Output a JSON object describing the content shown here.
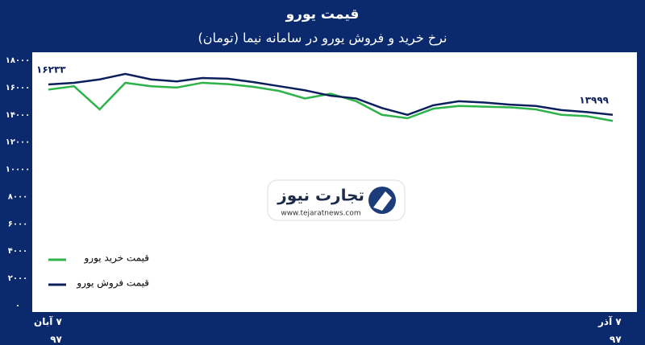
{
  "chart_data": {
    "type": "line",
    "title": "قیمت یورو",
    "subtitle": "نرخ خرید و فروش یورو در سامانه نیما (تومان)",
    "categories": [
      "۷ آبان\n۹۷",
      null,
      null,
      null,
      null,
      null,
      null,
      null,
      null,
      null,
      null,
      null,
      null,
      null,
      null,
      null,
      null,
      null,
      null,
      null,
      null,
      null,
      "۷ آذر\n۹۷"
    ],
    "series": [
      {
        "name": "قیمت خرید یورو",
        "color": "#2db34a",
        "values": [
          15850,
          16100,
          14400,
          16350,
          16100,
          16000,
          16350,
          16250,
          16050,
          15750,
          15200,
          15550,
          15000,
          14000,
          13750,
          14450,
          14650,
          14600,
          14550,
          14400,
          14000,
          13900,
          13550
        ]
      },
      {
        "name": "قیمت فروش یورو",
        "color": "#0c1f5c",
        "values": [
          16233,
          16350,
          16600,
          17000,
          16600,
          16450,
          16700,
          16650,
          16400,
          16100,
          15800,
          15400,
          15200,
          14500,
          14000,
          14700,
          15000,
          14900,
          14750,
          14650,
          14350,
          14200,
          13999
        ],
        "value_labels": [
          "۱۶۲۳۳",
          null,
          null,
          null,
          null,
          null,
          null,
          null,
          null,
          null,
          null,
          null,
          null,
          null,
          null,
          null,
          null,
          null,
          null,
          null,
          null,
          null,
          "۱۳۹۹۹"
        ]
      }
    ],
    "ylim": [
      0,
      18000
    ],
    "yticks": [
      {
        "value": 0,
        "label": "۰"
      },
      {
        "value": 2000,
        "label": "۲۰۰۰"
      },
      {
        "value": 4000,
        "label": "۴۰۰۰"
      },
      {
        "value": 6000,
        "label": "۶۰۰۰"
      },
      {
        "value": 8000,
        "label": "۸۰۰۰"
      },
      {
        "value": 10000,
        "label": "۱۰۰۰۰"
      },
      {
        "value": 12000,
        "label": "۱۲۰۰۰"
      },
      {
        "value": 14000,
        "label": "۱۴۰۰۰"
      },
      {
        "value": 16000,
        "label": "۱۶۰۰۰"
      },
      {
        "value": 18000,
        "label": "۱۸۰۰۰"
      }
    ],
    "grid": false,
    "legend": "lower left"
  },
  "watermark": {
    "name": "تجارت نیوز",
    "url": "www.tejaratnews.com"
  }
}
